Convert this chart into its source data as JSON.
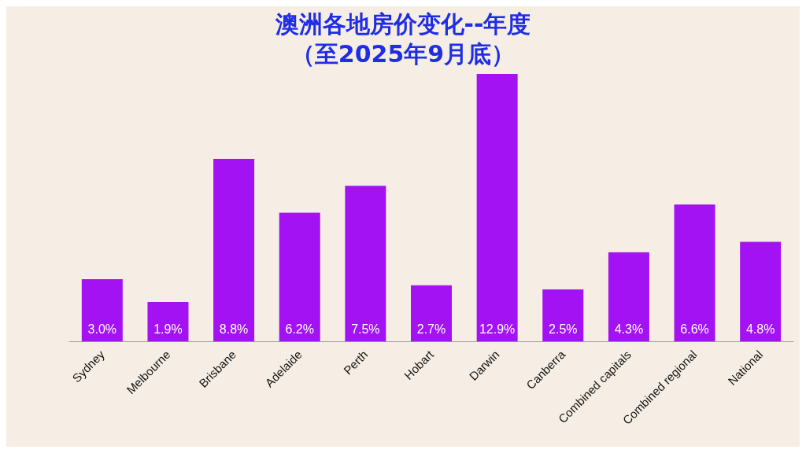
{
  "chart_data": {
    "type": "bar",
    "title": "澳洲各地房价变化--年度",
    "subtitle": "（至2025年9月底）",
    "categories": [
      "Sydney",
      "Melbourne",
      "Brisbane",
      "Adelaide",
      "Perth",
      "Hobart",
      "Darwin",
      "Canberra",
      "Combined capitals",
      "Combined regional",
      "National"
    ],
    "values": [
      3.0,
      1.9,
      8.8,
      6.2,
      7.5,
      2.7,
      12.9,
      2.5,
      4.3,
      6.6,
      4.8
    ],
    "value_labels": [
      "3.0%",
      "1.9%",
      "8.8%",
      "6.2%",
      "7.5%",
      "2.7%",
      "12.9%",
      "2.5%",
      "4.3%",
      "6.6%",
      "4.8%"
    ],
    "color": "#a212f2"
  }
}
